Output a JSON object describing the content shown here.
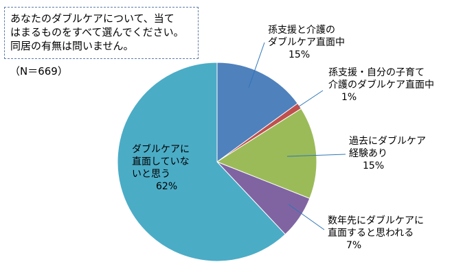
{
  "question": {
    "line1": "あなたのダブルケアについて、当て",
    "line2": "はまるものをすべて選んでください。",
    "line3": "同居の有無は問いません。"
  },
  "sample_size": "（N＝669）",
  "chart_data": {
    "type": "pie",
    "title": "",
    "slices": [
      {
        "lines": [
          "孫支援と介護の",
          "ダブルケア直面中"
        ],
        "value": 15,
        "pct": "15%",
        "color": "#4f81bd"
      },
      {
        "lines": [
          "孫支援・自分の子育て",
          "介護のダブルケア直面中"
        ],
        "value": 1,
        "pct": "1%",
        "color": "#c0504d"
      },
      {
        "lines": [
          "過去にダブルケア",
          "経験あり"
        ],
        "value": 15,
        "pct": "15%",
        "color": "#9bbb59"
      },
      {
        "lines": [
          "数年先にダブルケアに",
          "直面すると思われる"
        ],
        "value": 7,
        "pct": "7%",
        "color": "#8064a2"
      },
      {
        "lines": [
          "ダブルケアに",
          "直面していな",
          "いと思う"
        ],
        "value": 62,
        "pct": "62%",
        "color": "#4bacc6"
      }
    ]
  }
}
